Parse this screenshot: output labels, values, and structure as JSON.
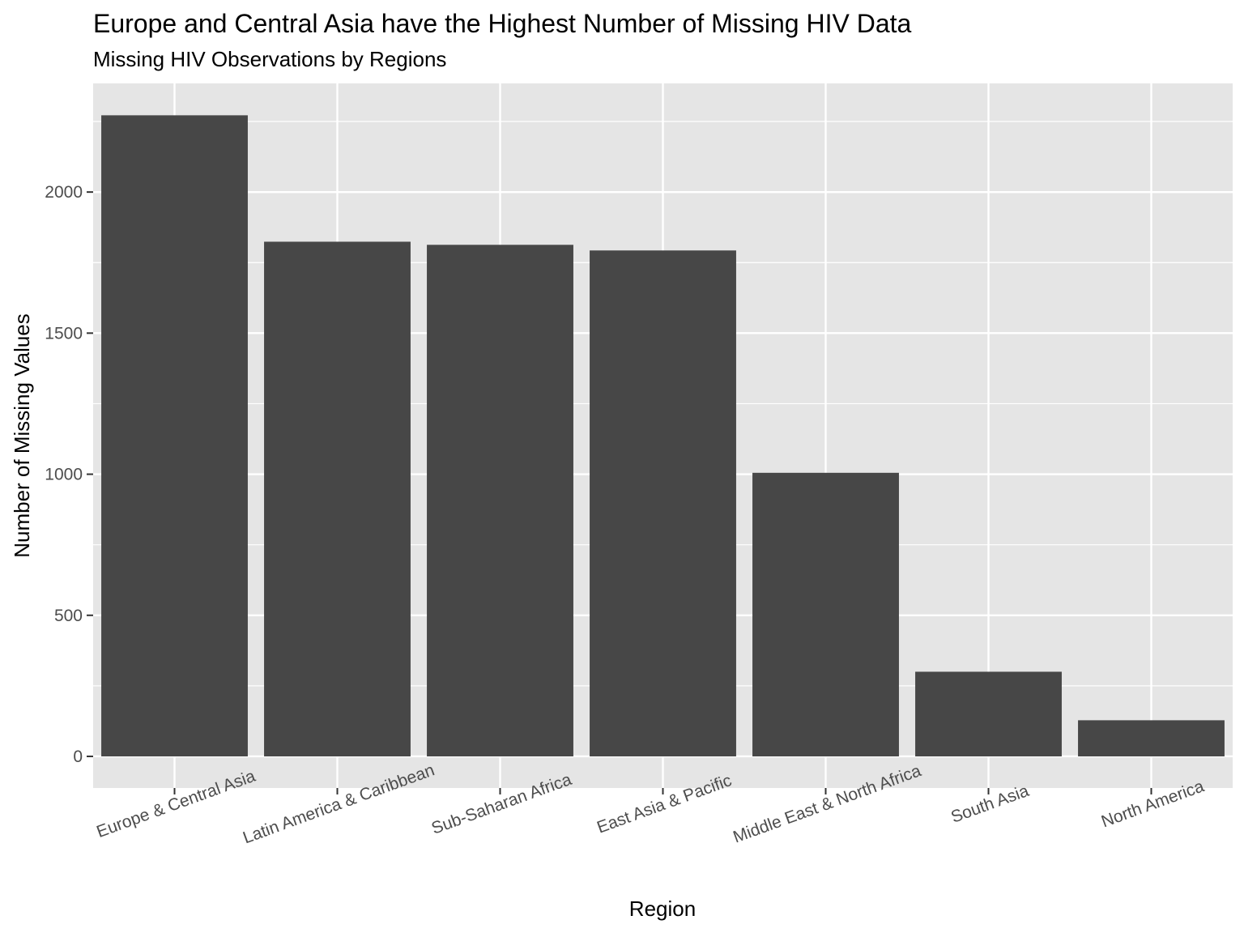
{
  "colors": {
    "panel_background": "#e5e5e5",
    "grid_major": "#ffffff",
    "bar_fill": "#474747",
    "tick_mark": "#333333",
    "tick_label": "#4d4d4d",
    "text": "#000000"
  },
  "chart_data": {
    "type": "bar",
    "title": "Europe and Central Asia have the Highest Number of Missing HIV Data",
    "subtitle": "Missing HIV Observations by Regions",
    "xlabel": "Region",
    "ylabel": "Number of Missing Values",
    "categories": [
      "Europe & Central Asia",
      "Latin America & Caribbean",
      "Sub-Saharan Africa",
      "East Asia & Pacific",
      "Middle East & North Africa",
      "South Asia",
      "North America"
    ],
    "values": [
      2272,
      1824,
      1813,
      1793,
      1005,
      300,
      128
    ],
    "y_ticks": [
      0,
      500,
      1000,
      1500,
      2000
    ],
    "ylim": [
      -112,
      2385
    ],
    "grid": true,
    "legend": "none"
  }
}
